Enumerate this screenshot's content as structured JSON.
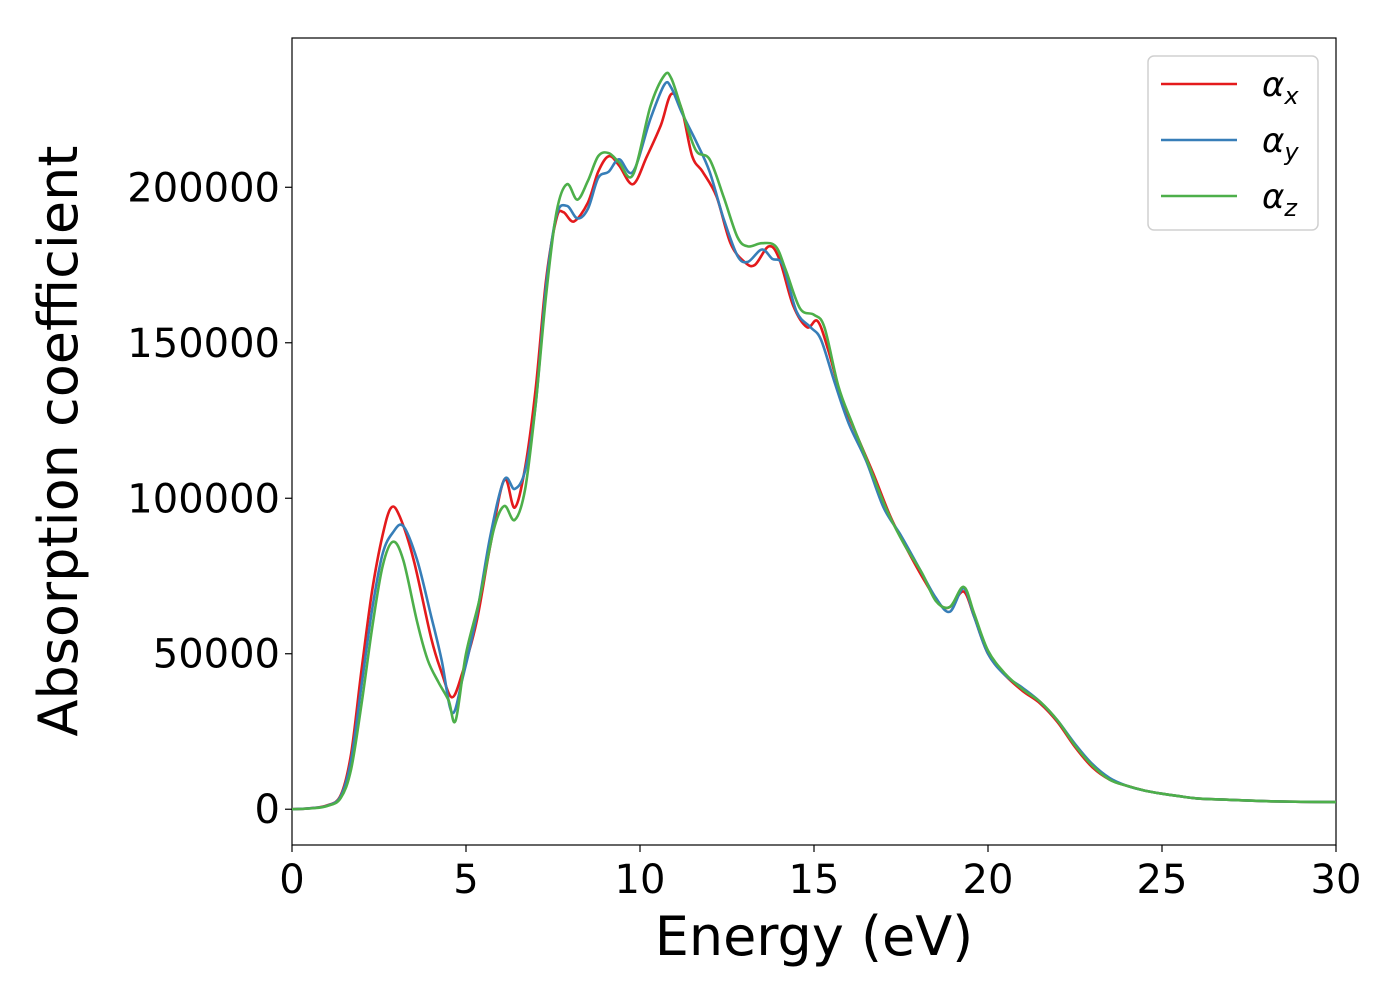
{
  "chart_data": {
    "type": "line",
    "title": "",
    "xlabel": "Energy (eV)",
    "ylabel": "Absorption coefficient",
    "xlim": [
      0,
      30
    ],
    "ylim": [
      -11500,
      248000
    ],
    "xticks": [
      0,
      5,
      10,
      15,
      20,
      25,
      30
    ],
    "yticks": [
      0,
      50000,
      100000,
      150000,
      200000
    ],
    "grid": false,
    "legend_position": "top-right",
    "series": [
      {
        "name": "α",
        "sub": "x",
        "color": "#e41a1c",
        "points": [
          [
            0,
            0
          ],
          [
            0.5,
            300
          ],
          [
            1,
            1200
          ],
          [
            1.4,
            4500
          ],
          [
            1.7,
            18000
          ],
          [
            2,
            45000
          ],
          [
            2.3,
            70000
          ],
          [
            2.6,
            88000
          ],
          [
            2.85,
            97000
          ],
          [
            3.1,
            94000
          ],
          [
            3.5,
            80000
          ],
          [
            4,
            55000
          ],
          [
            4.3,
            44000
          ],
          [
            4.6,
            36000
          ],
          [
            4.9,
            44000
          ],
          [
            5.3,
            60000
          ],
          [
            5.7,
            85000
          ],
          [
            6.1,
            106000
          ],
          [
            6.4,
            97000
          ],
          [
            6.7,
            110000
          ],
          [
            7,
            135000
          ],
          [
            7.3,
            170000
          ],
          [
            7.6,
            190000
          ],
          [
            7.8,
            192000
          ],
          [
            8.1,
            189000
          ],
          [
            8.5,
            195000
          ],
          [
            8.8,
            205000
          ],
          [
            9.1,
            210000
          ],
          [
            9.4,
            207000
          ],
          [
            9.8,
            201000
          ],
          [
            10.2,
            210000
          ],
          [
            10.6,
            220000
          ],
          [
            10.9,
            230000
          ],
          [
            11.2,
            225000
          ],
          [
            11.5,
            210000
          ],
          [
            11.8,
            205000
          ],
          [
            12.2,
            197000
          ],
          [
            12.6,
            182000
          ],
          [
            13,
            176000
          ],
          [
            13.3,
            175000
          ],
          [
            13.7,
            181000
          ],
          [
            14,
            177000
          ],
          [
            14.4,
            162000
          ],
          [
            14.8,
            155000
          ],
          [
            15.1,
            157000
          ],
          [
            15.4,
            148000
          ],
          [
            15.8,
            132000
          ],
          [
            16.2,
            121000
          ],
          [
            16.7,
            108000
          ],
          [
            17.2,
            94000
          ],
          [
            17.7,
            83000
          ],
          [
            18.2,
            73000
          ],
          [
            18.6,
            66000
          ],
          [
            18.9,
            65000
          ],
          [
            19.3,
            70000
          ],
          [
            19.6,
            62000
          ],
          [
            20,
            50000
          ],
          [
            20.5,
            43000
          ],
          [
            21,
            38000
          ],
          [
            21.5,
            34000
          ],
          [
            22,
            28000
          ],
          [
            22.5,
            20000
          ],
          [
            23,
            13500
          ],
          [
            23.5,
            9500
          ],
          [
            24,
            7500
          ],
          [
            24.5,
            6000
          ],
          [
            25,
            5000
          ],
          [
            25.5,
            4200
          ],
          [
            26,
            3500
          ],
          [
            27,
            3000
          ],
          [
            28,
            2600
          ],
          [
            29,
            2400
          ],
          [
            30,
            2300
          ]
        ]
      },
      {
        "name": "α",
        "sub": "y",
        "color": "#377eb8",
        "points": [
          [
            0,
            0
          ],
          [
            0.5,
            300
          ],
          [
            1,
            1100
          ],
          [
            1.4,
            4200
          ],
          [
            1.7,
            16000
          ],
          [
            2,
            40000
          ],
          [
            2.3,
            64000
          ],
          [
            2.6,
            82000
          ],
          [
            2.9,
            89000
          ],
          [
            3.2,
            91000
          ],
          [
            3.6,
            80000
          ],
          [
            4,
            62000
          ],
          [
            4.3,
            48000
          ],
          [
            4.6,
            31000
          ],
          [
            4.9,
            42000
          ],
          [
            5.3,
            62000
          ],
          [
            5.7,
            88000
          ],
          [
            6.1,
            106000
          ],
          [
            6.4,
            103000
          ],
          [
            6.7,
            109000
          ],
          [
            7,
            130000
          ],
          [
            7.3,
            168000
          ],
          [
            7.6,
            191000
          ],
          [
            7.9,
            194000
          ],
          [
            8.2,
            190000
          ],
          [
            8.5,
            193000
          ],
          [
            8.8,
            203000
          ],
          [
            9.1,
            205000
          ],
          [
            9.4,
            209000
          ],
          [
            9.8,
            205000
          ],
          [
            10.3,
            222000
          ],
          [
            10.7,
            233000
          ],
          [
            10.9,
            232000
          ],
          [
            11.2,
            224000
          ],
          [
            11.6,
            215000
          ],
          [
            12,
            205000
          ],
          [
            12.4,
            190000
          ],
          [
            12.8,
            178000
          ],
          [
            13.1,
            176000
          ],
          [
            13.5,
            180000
          ],
          [
            13.8,
            177000
          ],
          [
            14.1,
            175000
          ],
          [
            14.5,
            160000
          ],
          [
            14.9,
            155000
          ],
          [
            15.2,
            151000
          ],
          [
            15.6,
            137000
          ],
          [
            16,
            124000
          ],
          [
            16.5,
            112000
          ],
          [
            17,
            97000
          ],
          [
            17.5,
            88000
          ],
          [
            18,
            78000
          ],
          [
            18.5,
            68000
          ],
          [
            18.9,
            63500
          ],
          [
            19.3,
            71000
          ],
          [
            19.6,
            62000
          ],
          [
            20,
            50000
          ],
          [
            20.5,
            43000
          ],
          [
            21,
            39000
          ],
          [
            21.5,
            34500
          ],
          [
            22,
            28500
          ],
          [
            22.5,
            21000
          ],
          [
            23,
            14500
          ],
          [
            23.5,
            10000
          ],
          [
            24,
            7500
          ],
          [
            24.5,
            6000
          ],
          [
            25,
            5000
          ],
          [
            25.5,
            4200
          ],
          [
            26,
            3500
          ],
          [
            27,
            3000
          ],
          [
            28,
            2600
          ],
          [
            29,
            2400
          ],
          [
            30,
            2300
          ]
        ]
      },
      {
        "name": "α",
        "sub": "z",
        "color": "#4daf4a",
        "points": [
          [
            0,
            0
          ],
          [
            0.5,
            250
          ],
          [
            1,
            1000
          ],
          [
            1.4,
            3600
          ],
          [
            1.7,
            13000
          ],
          [
            2,
            34000
          ],
          [
            2.3,
            58000
          ],
          [
            2.6,
            78000
          ],
          [
            2.9,
            86000
          ],
          [
            3.2,
            80000
          ],
          [
            3.6,
            60000
          ],
          [
            3.9,
            48000
          ],
          [
            4.2,
            41000
          ],
          [
            4.5,
            35000
          ],
          [
            4.7,
            28500
          ],
          [
            5,
            50000
          ],
          [
            5.4,
            68000
          ],
          [
            5.8,
            90000
          ],
          [
            6.1,
            97500
          ],
          [
            6.4,
            93000
          ],
          [
            6.7,
            103000
          ],
          [
            7,
            130000
          ],
          [
            7.3,
            165000
          ],
          [
            7.6,
            192000
          ],
          [
            7.9,
            201000
          ],
          [
            8.2,
            196000
          ],
          [
            8.5,
            202000
          ],
          [
            8.8,
            210000
          ],
          [
            9.1,
            211000
          ],
          [
            9.4,
            208000
          ],
          [
            9.8,
            204000
          ],
          [
            10.3,
            226000
          ],
          [
            10.7,
            236000
          ],
          [
            10.9,
            235000
          ],
          [
            11.2,
            225000
          ],
          [
            11.6,
            212000
          ],
          [
            12,
            209000
          ],
          [
            12.4,
            197000
          ],
          [
            12.8,
            184000
          ],
          [
            13.1,
            181000
          ],
          [
            13.5,
            182000
          ],
          [
            13.9,
            181000
          ],
          [
            14.2,
            173000
          ],
          [
            14.6,
            161000
          ],
          [
            15,
            159000
          ],
          [
            15.3,
            155000
          ],
          [
            15.7,
            136000
          ],
          [
            16.1,
            124000
          ],
          [
            16.6,
            110000
          ],
          [
            17.1,
            96000
          ],
          [
            17.6,
            85000
          ],
          [
            18.1,
            76000
          ],
          [
            18.5,
            67000
          ],
          [
            18.9,
            65000
          ],
          [
            19.3,
            71500
          ],
          [
            19.6,
            63000
          ],
          [
            20,
            51000
          ],
          [
            20.5,
            43500
          ],
          [
            21,
            38500
          ],
          [
            21.5,
            34500
          ],
          [
            22,
            28500
          ],
          [
            22.5,
            20500
          ],
          [
            23,
            14000
          ],
          [
            23.5,
            9500
          ],
          [
            24,
            7500
          ],
          [
            24.5,
            6000
          ],
          [
            25,
            5000
          ],
          [
            25.5,
            4200
          ],
          [
            26,
            3500
          ],
          [
            27,
            3000
          ],
          [
            28,
            2600
          ],
          [
            29,
            2400
          ],
          [
            30,
            2300
          ]
        ]
      }
    ]
  }
}
